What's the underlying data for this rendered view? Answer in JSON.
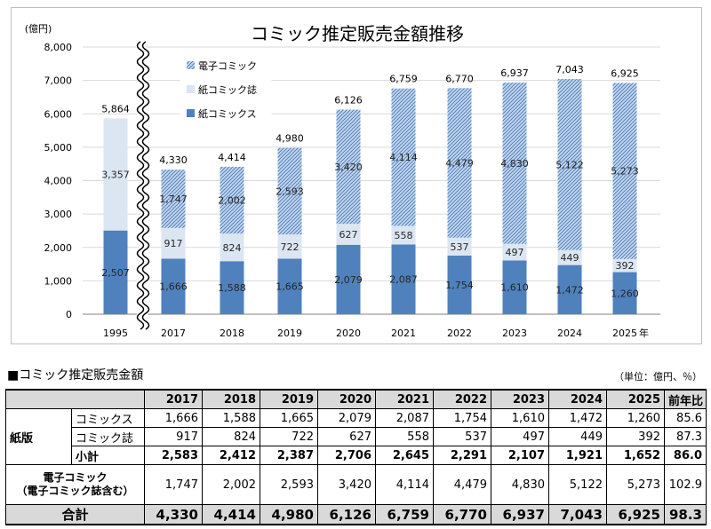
{
  "chart_data": {
    "type": "bar",
    "stacked": true,
    "title": "コミック推定販売金額推移",
    "y_unit": "(億円)",
    "x_unit": "年",
    "ylim": [
      0,
      8000
    ],
    "yticks": [
      "0",
      "1,000",
      "2,000",
      "3,000",
      "4,000",
      "5,000",
      "6,000",
      "7,000",
      "8,000"
    ],
    "categories": [
      "1995",
      "2017",
      "2018",
      "2019",
      "2020",
      "2021",
      "2022",
      "2023",
      "2024",
      "2025"
    ],
    "axis_break_after": "1995",
    "legend_position": "top-left",
    "series": [
      {
        "name": "紙コミックス",
        "color": "#4f81bd",
        "pattern": "solid",
        "values": [
          2507,
          1666,
          1588,
          1665,
          2079,
          2087,
          1754,
          1610,
          1472,
          1260
        ],
        "labels": [
          "2,507",
          "1,666",
          "1,588",
          "1,665",
          "2,079",
          "2,087",
          "1,754",
          "1,610",
          "1,472",
          "1,260"
        ]
      },
      {
        "name": "紙コミック誌",
        "color": "#dce6f2",
        "pattern": "solid",
        "values": [
          3357,
          917,
          824,
          722,
          627,
          558,
          537,
          497,
          449,
          392
        ],
        "labels": [
          "3,357",
          "917",
          "824",
          "722",
          "627",
          "558",
          "537",
          "497",
          "449",
          "392"
        ]
      },
      {
        "name": "電子コミック",
        "color": "#8eaedb",
        "pattern": "hatched",
        "values": [
          0,
          1747,
          2002,
          2593,
          3420,
          4114,
          4479,
          4830,
          5122,
          5273
        ],
        "labels": [
          "",
          "1,747",
          "2,002",
          "2,593",
          "3,420",
          "4,114",
          "4,479",
          "4,830",
          "5,122",
          "5,273"
        ]
      }
    ],
    "totals": [
      5864,
      4330,
      4414,
      4980,
      6126,
      6759,
      6770,
      6937,
      7043,
      6925
    ],
    "total_labels": [
      "5,864",
      "4,330",
      "4,414",
      "4,980",
      "6,126",
      "6,759",
      "6,770",
      "6,937",
      "7,043",
      "6,925"
    ]
  },
  "table": {
    "title": "■コミック推定販売金額",
    "unit_note": "（単位：億円、％）",
    "headers": [
      "",
      "",
      "2017",
      "2018",
      "2019",
      "2020",
      "2021",
      "2022",
      "2023",
      "2024",
      "2025",
      "前年比"
    ],
    "paper_label": "紙版",
    "rows": {
      "comics": {
        "label": "コミックス",
        "values": [
          "1,666",
          "1,588",
          "1,665",
          "2,079",
          "2,087",
          "1,754",
          "1,610",
          "1,472",
          "1,260",
          "85.6"
        ]
      },
      "magazines": {
        "label": "コミック誌",
        "values": [
          "917",
          "824",
          "722",
          "627",
          "558",
          "537",
          "497",
          "449",
          "392",
          "87.3"
        ]
      },
      "subtotal": {
        "label": "小計",
        "values": [
          "2,583",
          "2,412",
          "2,387",
          "2,706",
          "2,645",
          "2,291",
          "2,107",
          "1,921",
          "1,652",
          "86.0"
        ]
      },
      "digital": {
        "label_line1": "電子コミック",
        "label_line2": "（電子コミック誌含む）",
        "values": [
          "1,747",
          "2,002",
          "2,593",
          "3,420",
          "4,114",
          "4,479",
          "4,830",
          "5,122",
          "5,273",
          "102.9"
        ]
      },
      "total": {
        "label": "合計",
        "values": [
          "4,330",
          "4,414",
          "4,980",
          "6,126",
          "6,759",
          "6,770",
          "6,937",
          "7,043",
          "6,925",
          "98.3"
        ]
      }
    }
  }
}
